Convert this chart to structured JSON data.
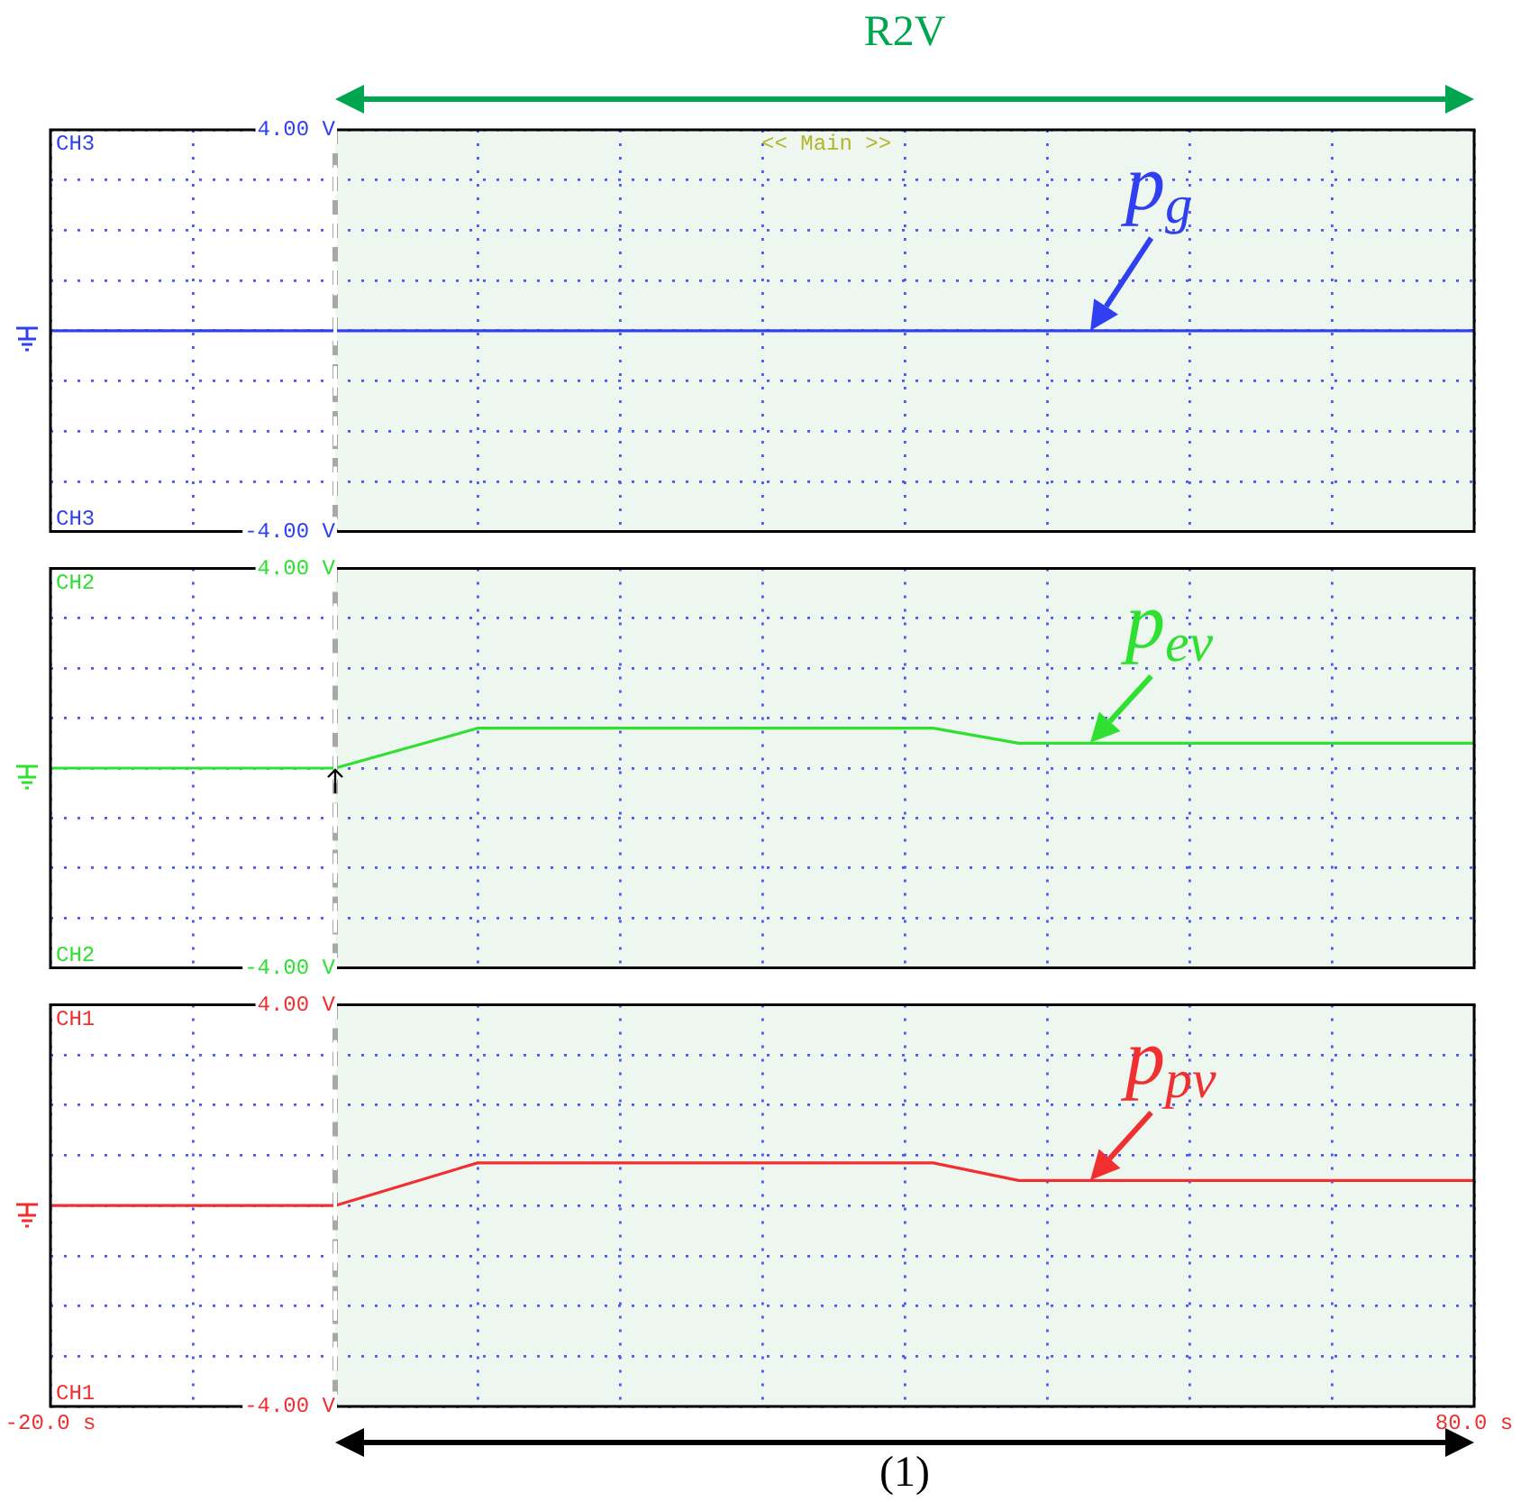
{
  "chart_data": [
    {
      "type": "line",
      "title": "CH3",
      "annotations": [
        "CH3",
        "<< Main >>",
        "R2V"
      ],
      "series": [
        {
          "name": "p$_{g}$",
          "color": "#3040f0",
          "x": [
            -20,
            80
          ],
          "values": [
            0,
            0
          ]
        }
      ],
      "xlim": [
        -20,
        80
      ],
      "xticks": [
        {
          "value": -20,
          "label": null
        },
        {
          "value": -10,
          "label": null
        },
        {
          "value": 0,
          "label": null
        },
        {
          "value": 10,
          "label": null
        },
        {
          "value": 20,
          "label": null
        },
        {
          "value": 30,
          "label": null
        },
        {
          "value": 40,
          "label": null
        },
        {
          "value": 50,
          "label": null
        },
        {
          "value": 60,
          "label": null
        },
        {
          "value": 70,
          "label": null
        },
        {
          "value": 80,
          "label": null
        }
      ],
      "ylim": [
        -4,
        4
      ],
      "yticks": [
        {
          "value": -4,
          "label": "-4.00 V"
        },
        {
          "value": -3,
          "label": null
        },
        {
          "value": -2,
          "label": null
        },
        {
          "value": -1,
          "label": null
        },
        {
          "value": 0,
          "label": null
        },
        {
          "value": 1,
          "label": null
        },
        {
          "value": 2,
          "label": null
        },
        {
          "value": 3,
          "label": null
        },
        {
          "value": 4,
          "label": "4.00 V"
        }
      ],
      "grid": true,
      "tick_labels": "y",
      "bands": [
        {
          "axis": "x",
          "from": 0,
          "to": 80,
          "color": "#edf7f0"
        }
      ],
      "ref_lines": [
        {
          "axis": "x",
          "value": 0,
          "color": "#a8a8a8",
          "line_style": "dashed"
        }
      ]
    },
    {
      "type": "line",
      "title": "CH2",
      "annotations": [
        "CH2"
      ],
      "series": [
        {
          "name": "p$_{ev}$",
          "color": "#30e030",
          "x": [
            -20,
            0,
            10,
            42,
            48,
            80
          ],
          "values": [
            0,
            0,
            0.8,
            0.8,
            0.5,
            0.5
          ]
        }
      ],
      "xlim": [
        -20,
        80
      ],
      "xticks": [
        {
          "value": -20,
          "label": null
        },
        {
          "value": -10,
          "label": null
        },
        {
          "value": 0,
          "label": null
        },
        {
          "value": 10,
          "label": null
        },
        {
          "value": 20,
          "label": null
        },
        {
          "value": 30,
          "label": null
        },
        {
          "value": 40,
          "label": null
        },
        {
          "value": 50,
          "label": null
        },
        {
          "value": 60,
          "label": null
        },
        {
          "value": 70,
          "label": null
        },
        {
          "value": 80,
          "label": null
        }
      ],
      "ylim": [
        -4,
        4
      ],
      "yticks": [
        {
          "value": -4,
          "label": "-4.00 V"
        },
        {
          "value": -3,
          "label": null
        },
        {
          "value": -2,
          "label": null
        },
        {
          "value": -1,
          "label": null
        },
        {
          "value": 0,
          "label": null
        },
        {
          "value": 1,
          "label": null
        },
        {
          "value": 2,
          "label": null
        },
        {
          "value": 3,
          "label": null
        },
        {
          "value": 4,
          "label": "4.00 V"
        }
      ],
      "grid": true,
      "tick_labels": "y",
      "bands": [
        {
          "axis": "x",
          "from": 0,
          "to": 80,
          "color": "#edf7f0"
        }
      ],
      "ref_lines": [
        {
          "axis": "x",
          "value": 0,
          "color": "#a8a8a8",
          "line_style": "dashed"
        }
      ]
    },
    {
      "type": "line",
      "title": "CH1",
      "annotations": [
        "CH1",
        "(1)"
      ],
      "series": [
        {
          "name": "p$_{pv}$",
          "color": "#f03030",
          "x": [
            -20,
            0,
            10,
            42,
            48,
            80
          ],
          "values": [
            0,
            0,
            0.85,
            0.85,
            0.5,
            0.5
          ]
        }
      ],
      "xlim": [
        -20,
        80
      ],
      "xticks": [
        {
          "value": -20,
          "label": "-20.0 s"
        },
        {
          "value": -10,
          "label": null
        },
        {
          "value": 0,
          "label": null
        },
        {
          "value": 10,
          "label": null
        },
        {
          "value": 20,
          "label": null
        },
        {
          "value": 30,
          "label": null
        },
        {
          "value": 40,
          "label": null
        },
        {
          "value": 50,
          "label": null
        },
        {
          "value": 60,
          "label": null
        },
        {
          "value": 70,
          "label": null
        },
        {
          "value": 80,
          "label": "80.0 s"
        }
      ],
      "ylim": [
        -4,
        4
      ],
      "yticks": [
        {
          "value": -4,
          "label": "-4.00 V"
        },
        {
          "value": -3,
          "label": null
        },
        {
          "value": -2,
          "label": null
        },
        {
          "value": -1,
          "label": null
        },
        {
          "value": 0,
          "label": null
        },
        {
          "value": 1,
          "label": null
        },
        {
          "value": 2,
          "label": null
        },
        {
          "value": 3,
          "label": null
        },
        {
          "value": 4,
          "label": "4.00 V"
        }
      ],
      "grid": true,
      "bands": [
        {
          "axis": "x",
          "from": 0,
          "to": 80,
          "color": "#edf7f0"
        }
      ],
      "ref_lines": [
        {
          "axis": "x",
          "value": 0,
          "color": "#a8a8a8",
          "line_style": "dashed"
        }
      ]
    }
  ]
}
